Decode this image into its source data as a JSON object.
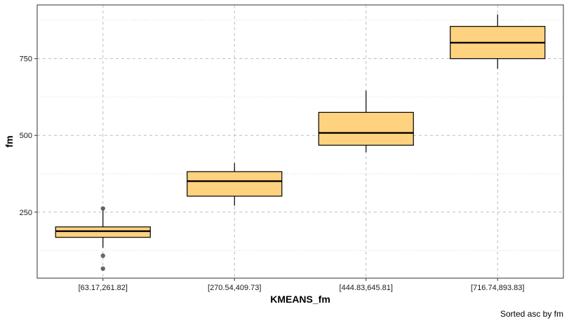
{
  "chart_data": {
    "type": "boxplot",
    "title": "",
    "xlabel": "KMEANS_fm",
    "ylabel": "fm",
    "caption": "Sorted asc by  fm",
    "ylim": [
      35,
      925
    ],
    "y_major_ticks": [
      250,
      500,
      750
    ],
    "y_minor_ticks": [
      125,
      375,
      625,
      875
    ],
    "grid": true,
    "colors": {
      "box_fill": "#FFD27F",
      "box_stroke": "#000000",
      "outlier": "#4d4d4d",
      "grid": "#bdbdbd"
    },
    "categories": [
      "[63.17,261.82]",
      "[270.54,409.73]",
      "[444.83,645.81]",
      "[716.74,893.83]"
    ],
    "boxes": [
      {
        "category": "[63.17,261.82]",
        "whisker_low": 134,
        "q1": 168,
        "median": 188,
        "q3": 202,
        "whisker_high": 260,
        "outliers": [
          108,
          66,
          262
        ]
      },
      {
        "category": "[270.54,409.73]",
        "whisker_low": 271,
        "q1": 302,
        "median": 351,
        "q3": 382,
        "whisker_high": 410,
        "outliers": []
      },
      {
        "category": "[444.83,645.81]",
        "whisker_low": 445,
        "q1": 468,
        "median": 508,
        "q3": 575,
        "whisker_high": 646,
        "outliers": []
      },
      {
        "category": "[716.74,893.83]",
        "whisker_low": 717,
        "q1": 750,
        "median": 802,
        "q3": 855,
        "whisker_high": 894,
        "outliers": []
      }
    ]
  }
}
